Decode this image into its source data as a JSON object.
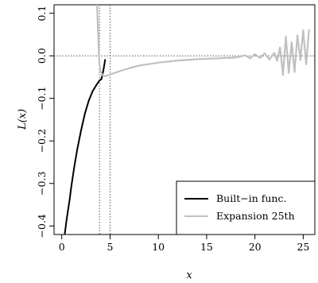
{
  "chart_data": {
    "type": "line",
    "title": "",
    "xlabel": "x",
    "ylabel": "L(x)",
    "xlim": [
      -0.8,
      26.2
    ],
    "ylim": [
      -0.42,
      0.12
    ],
    "x_ticks": [
      0,
      5,
      10,
      15,
      20,
      25
    ],
    "x_tick_labels": [
      "0",
      "5",
      "10",
      "15",
      "20",
      "25"
    ],
    "y_ticks": [
      0.1,
      0.0,
      -0.1,
      -0.2,
      -0.3,
      -0.4
    ],
    "y_tick_labels": [
      "0.1",
      "0.0",
      "−0.1",
      "−0.2",
      "−0.3",
      "−0.4"
    ],
    "reference_lines": {
      "horizontal": [
        0.0
      ],
      "vertical": [
        3.9,
        5.0
      ]
    },
    "grid": false,
    "legend": {
      "position": "bottom-right"
    },
    "series": [
      {
        "name": "Built−in func.",
        "color": "#000000",
        "x": [
          0.3,
          0.5,
          0.8,
          1.0,
          1.3,
          1.6,
          2.0,
          2.4,
          2.8,
          3.2,
          3.6,
          3.9,
          4.1,
          4.3,
          4.5
        ],
        "y": [
          -0.42,
          -0.385,
          -0.34,
          -0.305,
          -0.26,
          -0.22,
          -0.175,
          -0.135,
          -0.105,
          -0.083,
          -0.068,
          -0.058,
          -0.055,
          -0.035,
          -0.008
        ]
      },
      {
        "name": "Expansion 25th",
        "color": "#c0c0c0",
        "x": [
          3.65,
          3.7,
          3.75,
          3.8,
          3.85,
          3.9,
          4.0,
          4.2,
          4.5,
          5.0,
          6.0,
          7.0,
          8.0,
          10.0,
          12.0,
          14.0,
          16.0,
          18.0,
          19.0,
          19.5,
          20.0,
          20.5,
          21.0,
          21.5,
          22.0,
          22.3,
          22.6,
          22.9,
          23.2,
          23.5,
          23.8,
          24.1,
          24.4,
          24.7,
          25.0,
          25.3,
          25.6
        ],
        "y": [
          0.12,
          0.09,
          0.06,
          0.03,
          0.0,
          -0.02,
          -0.035,
          -0.045,
          -0.048,
          -0.044,
          -0.036,
          -0.029,
          -0.023,
          -0.016,
          -0.011,
          -0.008,
          -0.006,
          -0.004,
          0.001,
          -0.006,
          0.004,
          -0.005,
          0.006,
          -0.009,
          0.007,
          -0.012,
          0.02,
          -0.045,
          0.045,
          -0.04,
          0.032,
          -0.038,
          0.048,
          -0.01,
          0.06,
          -0.02,
          0.062
        ]
      }
    ]
  }
}
